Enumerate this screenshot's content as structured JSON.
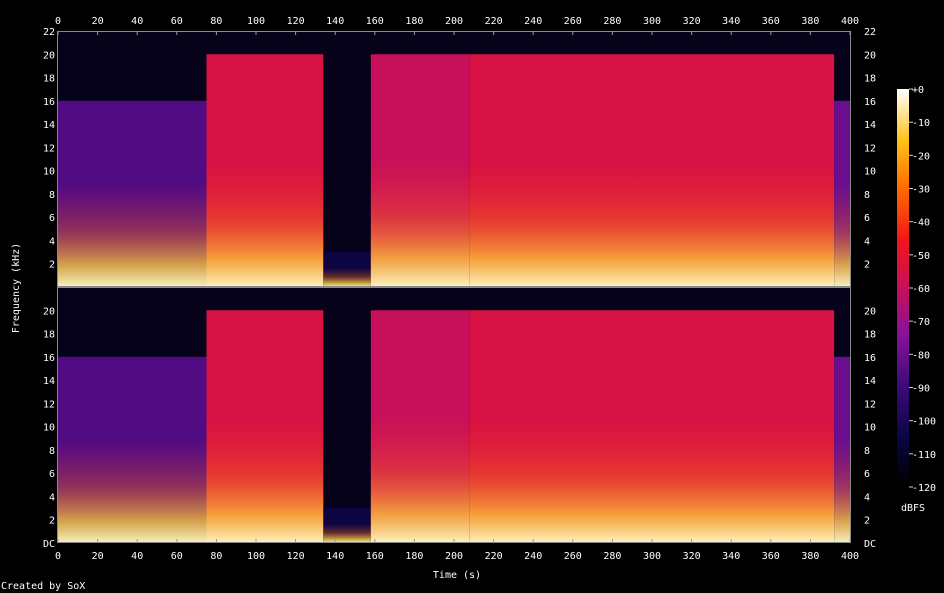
{
  "chart_data": {
    "type": "heatmap",
    "title": "",
    "xlabel": "Time (s)",
    "ylabel": "Frequency (kHz)",
    "colorbar_label": "dBFS",
    "footer": "Created by SoX",
    "channels": 2,
    "xlim": [
      0,
      400
    ],
    "ylim_khz": [
      0,
      22
    ],
    "zlim_dbfs": [
      -120,
      0
    ],
    "x_ticks": [
      0,
      20,
      40,
      60,
      80,
      100,
      120,
      140,
      160,
      180,
      200,
      220,
      240,
      260,
      280,
      300,
      320,
      340,
      360,
      380,
      400
    ],
    "y_ticks_top": [
      "2",
      "4",
      "6",
      "8",
      "10",
      "12",
      "14",
      "16",
      "18",
      "20",
      "22"
    ],
    "y_ticks_bottom": [
      "DC",
      "2",
      "4",
      "6",
      "8",
      "10",
      "12",
      "14",
      "16",
      "18",
      "20"
    ],
    "colorbar_ticks": [
      "-120",
      "-110",
      "-100",
      "-90",
      "-80",
      "-70",
      "-60",
      "-50",
      "-40",
      "-30",
      "-20",
      "-10",
      "+0"
    ],
    "segments": [
      {
        "start_s": 0,
        "end_s": 75,
        "cutoff_khz": 16,
        "level_dbfs": -85
      },
      {
        "start_s": 75,
        "end_s": 134,
        "cutoff_khz": 20,
        "level_dbfs": -55
      },
      {
        "start_s": 134,
        "end_s": 158,
        "cutoff_khz": 3,
        "level_dbfs": -105
      },
      {
        "start_s": 158,
        "end_s": 208,
        "cutoff_khz": 20,
        "level_dbfs": -60
      },
      {
        "start_s": 208,
        "end_s": 392,
        "cutoff_khz": 20,
        "level_dbfs": -55
      },
      {
        "start_s": 392,
        "end_s": 400,
        "cutoff_khz": 16,
        "level_dbfs": -80
      }
    ]
  }
}
